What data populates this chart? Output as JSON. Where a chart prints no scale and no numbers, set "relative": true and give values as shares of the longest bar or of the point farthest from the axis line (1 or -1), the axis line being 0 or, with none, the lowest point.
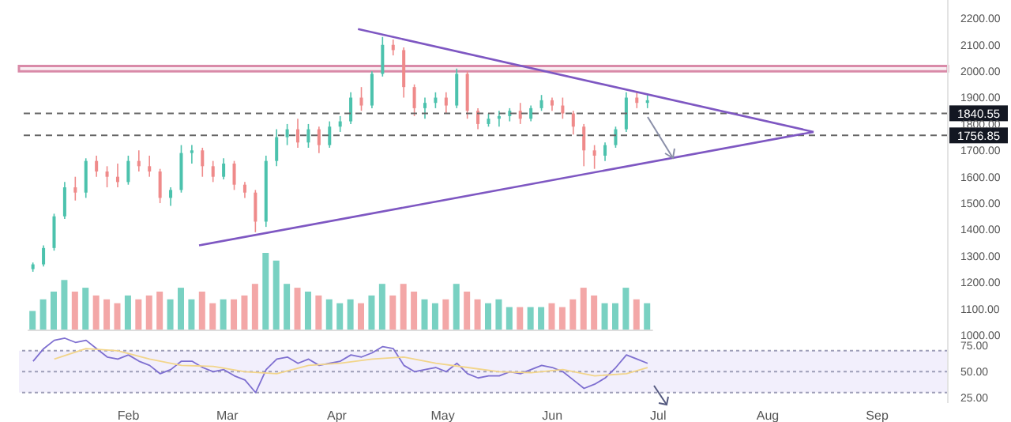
{
  "chart_data": [
    {
      "type": "candlestick",
      "tick_labels": "y",
      "x": [
        "--01-05",
        "--01-08",
        "--01-11",
        "--01-14",
        "--01-17",
        "--01-20",
        "--01-23",
        "--01-26",
        "--01-29",
        "--02-01",
        "--02-04",
        "--02-07",
        "--02-10",
        "--02-13",
        "--02-16",
        "--02-19",
        "--02-22",
        "--02-25",
        "--02-28",
        "--03-03",
        "--03-06",
        "--03-09",
        "--03-12",
        "--03-15",
        "--03-18",
        "--03-21",
        "--03-24",
        "--03-27",
        "--03-30",
        "--04-02",
        "--04-05",
        "--04-08",
        "--04-11",
        "--04-14",
        "--04-17",
        "--04-20",
        "--04-23",
        "--04-26",
        "--04-29",
        "--05-02",
        "--05-05",
        "--05-08",
        "--05-11",
        "--05-14",
        "--05-17",
        "--05-20",
        "--05-23",
        "--05-26",
        "--05-29",
        "--06-01",
        "--06-04",
        "--06-07",
        "--06-10",
        "--06-13",
        "--06-16",
        "--06-19",
        "--06-22",
        "--06-25",
        "--06-28"
      ],
      "ohlc": [
        [
          1250,
          1275,
          1240,
          1268
        ],
        [
          1268,
          1340,
          1260,
          1330
        ],
        [
          1330,
          1460,
          1320,
          1450
        ],
        [
          1450,
          1580,
          1440,
          1560
        ],
        [
          1560,
          1600,
          1510,
          1540
        ],
        [
          1540,
          1670,
          1520,
          1660
        ],
        [
          1660,
          1680,
          1600,
          1620
        ],
        [
          1620,
          1640,
          1560,
          1600
        ],
        [
          1600,
          1650,
          1560,
          1580
        ],
        [
          1580,
          1680,
          1570,
          1660
        ],
        [
          1660,
          1700,
          1620,
          1640
        ],
        [
          1640,
          1680,
          1600,
          1620
        ],
        [
          1620,
          1630,
          1500,
          1520
        ],
        [
          1520,
          1560,
          1490,
          1550
        ],
        [
          1550,
          1720,
          1540,
          1690
        ],
        [
          1690,
          1720,
          1650,
          1700
        ],
        [
          1700,
          1710,
          1600,
          1640
        ],
        [
          1640,
          1660,
          1580,
          1600
        ],
        [
          1600,
          1670,
          1590,
          1650
        ],
        [
          1650,
          1660,
          1550,
          1570
        ],
        [
          1570,
          1580,
          1520,
          1540
        ],
        [
          1540,
          1550,
          1390,
          1430
        ],
        [
          1430,
          1680,
          1410,
          1660
        ],
        [
          1660,
          1780,
          1640,
          1750
        ],
        [
          1750,
          1800,
          1720,
          1780
        ],
        [
          1780,
          1820,
          1710,
          1730
        ],
        [
          1730,
          1800,
          1710,
          1780
        ],
        [
          1780,
          1790,
          1690,
          1720
        ],
        [
          1720,
          1810,
          1710,
          1790
        ],
        [
          1790,
          1830,
          1770,
          1810
        ],
        [
          1810,
          1920,
          1800,
          1900
        ],
        [
          1900,
          1940,
          1850,
          1870
        ],
        [
          1870,
          2000,
          1860,
          1990
        ],
        [
          1990,
          2130,
          1980,
          2100
        ],
        [
          2100,
          2120,
          2060,
          2080
        ],
        [
          2080,
          2090,
          1900,
          1940
        ],
        [
          1940,
          1950,
          1830,
          1860
        ],
        [
          1860,
          1900,
          1820,
          1880
        ],
        [
          1880,
          1920,
          1860,
          1900
        ],
        [
          1900,
          1920,
          1840,
          1870
        ],
        [
          1870,
          2010,
          1860,
          1990
        ],
        [
          1990,
          2000,
          1820,
          1850
        ],
        [
          1850,
          1860,
          1780,
          1800
        ],
        [
          1800,
          1840,
          1790,
          1820
        ],
        [
          1820,
          1850,
          1790,
          1830
        ],
        [
          1830,
          1860,
          1810,
          1850
        ],
        [
          1850,
          1880,
          1800,
          1820
        ],
        [
          1820,
          1870,
          1810,
          1860
        ],
        [
          1860,
          1910,
          1850,
          1890
        ],
        [
          1890,
          1900,
          1850,
          1870
        ],
        [
          1870,
          1900,
          1820,
          1840
        ],
        [
          1840,
          1850,
          1760,
          1790
        ],
        [
          1790,
          1800,
          1640,
          1700
        ],
        [
          1700,
          1720,
          1630,
          1680
        ],
        [
          1680,
          1730,
          1660,
          1720
        ],
        [
          1720,
          1790,
          1710,
          1780
        ],
        [
          1780,
          1920,
          1770,
          1900
        ],
        [
          1900,
          1920,
          1860,
          1880
        ],
        [
          1880,
          1910,
          1860,
          1890
        ]
      ],
      "colors": [
        "#4cc2ad",
        "#4cc2ad",
        "#4cc2ad",
        "#4cc2ad",
        "#ef8a8a",
        "#4cc2ad",
        "#ef8a8a",
        "#ef8a8a",
        "#ef8a8a",
        "#4cc2ad",
        "#ef8a8a",
        "#ef8a8a",
        "#ef8a8a",
        "#4cc2ad",
        "#4cc2ad",
        "#4cc2ad",
        "#ef8a8a",
        "#ef8a8a",
        "#4cc2ad",
        "#ef8a8a",
        "#ef8a8a",
        "#ef8a8a",
        "#4cc2ad",
        "#4cc2ad",
        "#4cc2ad",
        "#ef8a8a",
        "#4cc2ad",
        "#ef8a8a",
        "#4cc2ad",
        "#4cc2ad",
        "#4cc2ad",
        "#ef8a8a",
        "#4cc2ad",
        "#4cc2ad",
        "#ef8a8a",
        "#ef8a8a",
        "#ef8a8a",
        "#4cc2ad",
        "#4cc2ad",
        "#ef8a8a",
        "#4cc2ad",
        "#ef8a8a",
        "#ef8a8a",
        "#4cc2ad",
        "#4cc2ad",
        "#4cc2ad",
        "#ef8a8a",
        "#4cc2ad",
        "#4cc2ad",
        "#ef8a8a",
        "#ef8a8a",
        "#ef8a8a",
        "#ef8a8a",
        "#ef8a8a",
        "#4cc2ad",
        "#4cc2ad",
        "#4cc2ad",
        "#ef8a8a",
        "#4cc2ad"
      ],
      "series": [
        {
          "type": "line",
          "color": "#7e57c2",
          "x": [
            "--04-07",
            "--08-14"
          ],
          "values": [
            2160,
            1770
          ]
        },
        {
          "type": "line",
          "color": "#7e57c2",
          "x": [
            "--02-21",
            "--08-14"
          ],
          "values": [
            1340,
            1770
          ]
        }
      ],
      "xlim": [
        "--01-01",
        "--09-21"
      ],
      "ylim": [
        1000,
        2270
      ],
      "yticks": [
        {
          "value": 1000,
          "label": "1000.00"
        },
        {
          "value": 1100,
          "label": "1100.00"
        },
        {
          "value": 1200,
          "label": "1200.00"
        },
        {
          "value": 1300,
          "label": "1300.00"
        },
        {
          "value": 1400,
          "label": "1400.00"
        },
        {
          "value": 1500,
          "label": "1500.00"
        },
        {
          "value": 1600,
          "label": "1600.00"
        },
        {
          "value": 1700,
          "label": "1700.00"
        },
        {
          "value": 1800,
          "label": "1800.00"
        },
        {
          "value": 1900,
          "label": "1900.00"
        },
        {
          "value": 2000,
          "label": "2000.00"
        },
        {
          "value": 2100,
          "label": "2100.00"
        },
        {
          "value": 2200,
          "label": "2200.00"
        }
      ],
      "ref_lines": [
        {
          "axis": "y",
          "value": 1840.55,
          "label": "1840.55",
          "color": "#666666",
          "line_style": "dashed"
        },
        {
          "axis": "y",
          "value": 1756.85,
          "label": "1756.85",
          "color": "#666666",
          "line_style": "dashed"
        }
      ],
      "bands": [
        {
          "axis": "y",
          "from": 2000,
          "to": 2020,
          "color": "#d98aa8"
        }
      ]
    },
    {
      "type": "bar",
      "relative": true,
      "tick_labels": false,
      "categories": [
        null,
        null,
        null,
        null,
        null,
        null,
        null,
        null,
        null,
        null,
        null,
        null,
        null,
        null,
        null,
        null,
        null,
        null,
        null,
        null,
        null,
        null,
        null,
        null,
        null,
        null,
        null,
        null,
        null,
        null,
        null,
        null,
        null,
        null,
        null,
        null,
        null,
        null,
        null,
        null,
        null,
        null,
        null,
        null,
        null,
        null,
        null,
        null,
        null,
        null,
        null,
        null,
        null,
        null,
        null,
        null,
        null,
        null,
        null
      ],
      "values": [
        0.25,
        0.4,
        0.5,
        0.65,
        0.5,
        0.55,
        0.45,
        0.4,
        0.35,
        0.45,
        0.4,
        0.45,
        0.5,
        0.4,
        0.55,
        0.4,
        0.5,
        0.35,
        0.4,
        0.4,
        0.45,
        0.6,
        1,
        0.9,
        0.6,
        0.55,
        0.5,
        0.45,
        0.4,
        0.35,
        0.4,
        0.35,
        0.45,
        0.6,
        0.45,
        0.6,
        0.5,
        0.4,
        0.35,
        0.4,
        0.6,
        0.5,
        0.4,
        0.35,
        0.4,
        0.3,
        0.3,
        0.3,
        0.3,
        0.35,
        0.3,
        0.4,
        0.55,
        0.45,
        0.35,
        0.35,
        0.55,
        0.4,
        0.35
      ],
      "colors": [
        "#4cc2ad",
        "#4cc2ad",
        "#4cc2ad",
        "#4cc2ad",
        "#ef8a8a",
        "#4cc2ad",
        "#ef8a8a",
        "#ef8a8a",
        "#ef8a8a",
        "#4cc2ad",
        "#ef8a8a",
        "#ef8a8a",
        "#ef8a8a",
        "#4cc2ad",
        "#4cc2ad",
        "#4cc2ad",
        "#ef8a8a",
        "#ef8a8a",
        "#4cc2ad",
        "#ef8a8a",
        "#ef8a8a",
        "#ef8a8a",
        "#4cc2ad",
        "#4cc2ad",
        "#4cc2ad",
        "#ef8a8a",
        "#4cc2ad",
        "#ef8a8a",
        "#4cc2ad",
        "#4cc2ad",
        "#4cc2ad",
        "#ef8a8a",
        "#4cc2ad",
        "#4cc2ad",
        "#ef8a8a",
        "#ef8a8a",
        "#ef8a8a",
        "#4cc2ad",
        "#4cc2ad",
        "#ef8a8a",
        "#4cc2ad",
        "#ef8a8a",
        "#ef8a8a",
        "#4cc2ad",
        "#4cc2ad",
        "#4cc2ad",
        "#ef8a8a",
        "#4cc2ad",
        "#4cc2ad",
        "#ef8a8a",
        "#ef8a8a",
        "#ef8a8a",
        "#ef8a8a",
        "#ef8a8a",
        "#4cc2ad",
        "#4cc2ad",
        "#4cc2ad",
        "#ef8a8a",
        "#4cc2ad"
      ]
    },
    {
      "type": "line",
      "marker": "none",
      "series": [
        {
          "color": "#7e6fd0",
          "x": [
            "--01-05",
            "--01-08",
            "--01-11",
            "--01-14",
            "--01-17",
            "--01-20",
            "--01-23",
            "--01-26",
            "--01-29",
            "--02-01",
            "--02-04",
            "--02-07",
            "--02-10",
            "--02-13",
            "--02-16",
            "--02-19",
            "--02-22",
            "--02-25",
            "--02-28",
            "--03-03",
            "--03-06",
            "--03-09",
            "--03-12",
            "--03-15",
            "--03-18",
            "--03-21",
            "--03-24",
            "--03-27",
            "--03-30",
            "--04-02",
            "--04-05",
            "--04-08",
            "--04-11",
            "--04-14",
            "--04-17",
            "--04-20",
            "--04-23",
            "--04-26",
            "--04-29",
            "--05-02",
            "--05-05",
            "--05-08",
            "--05-11",
            "--05-14",
            "--05-17",
            "--05-20",
            "--05-23",
            "--05-26",
            "--05-29",
            "--06-01",
            "--06-04",
            "--06-07",
            "--06-10",
            "--06-13",
            "--06-16",
            "--06-19",
            "--06-22",
            "--06-25",
            "--06-28"
          ],
          "values": [
            60,
            72,
            80,
            82,
            78,
            80,
            72,
            64,
            62,
            66,
            60,
            56,
            48,
            52,
            60,
            60,
            54,
            50,
            52,
            46,
            42,
            30,
            52,
            62,
            64,
            58,
            62,
            56,
            58,
            60,
            66,
            64,
            68,
            74,
            72,
            56,
            50,
            52,
            54,
            50,
            58,
            48,
            44,
            46,
            46,
            50,
            48,
            52,
            56,
            54,
            50,
            42,
            34,
            38,
            44,
            54,
            66,
            62,
            58
          ]
        },
        {
          "color": "#f2d58a",
          "x": [
            "--01-11",
            "--01-20",
            "--01-29",
            "--02-07",
            "--02-16",
            "--02-25",
            "--03-06",
            "--03-15",
            "--03-24",
            "--04-02",
            "--04-11",
            "--04-20",
            "--04-29",
            "--05-08",
            "--05-17",
            "--05-26",
            "--06-04",
            "--06-13",
            "--06-22",
            "--06-28"
          ],
          "values": [
            62,
            72,
            70,
            62,
            56,
            55,
            50,
            48,
            56,
            58,
            62,
            64,
            58,
            54,
            50,
            49,
            52,
            46,
            48,
            54
          ]
        }
      ],
      "xlim": [
        "--01-01",
        "--09-21"
      ],
      "ylim": [
        20,
        85
      ],
      "xticks": [
        {
          "value": "--02-01",
          "label": "Feb"
        },
        {
          "value": "--03-01",
          "label": "Mar"
        },
        {
          "value": "--04-01",
          "label": "Apr"
        },
        {
          "value": "--05-01",
          "label": "May"
        },
        {
          "value": "--06-01",
          "label": "Jun"
        },
        {
          "value": "--07-01",
          "label": "Jul"
        },
        {
          "value": "--08-01",
          "label": "Aug"
        },
        {
          "value": "--09-01",
          "label": "Sep"
        }
      ],
      "yticks": [
        {
          "value": 25,
          "label": "25.00"
        },
        {
          "value": 50,
          "label": "50.00"
        },
        {
          "value": 75,
          "label": "75.00"
        }
      ],
      "ref_lines": [
        {
          "axis": "y",
          "value": 70,
          "color": "#9e9eb8",
          "line_style": "dotted"
        },
        {
          "axis": "y",
          "value": 50,
          "color": "#9e9eb8",
          "line_style": "dotted"
        },
        {
          "axis": "y",
          "value": 30,
          "color": "#9e9eb8",
          "line_style": "dotted"
        }
      ],
      "bands": [
        {
          "axis": "y",
          "from": 30,
          "to": 70,
          "color": "#ede8fb"
        }
      ]
    }
  ]
}
